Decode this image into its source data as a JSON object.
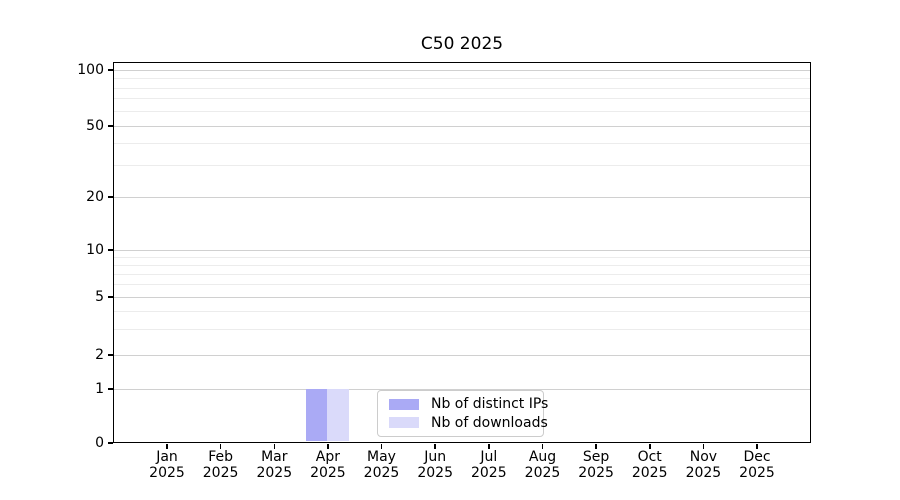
{
  "chart_data": {
    "type": "bar",
    "title": "C50 2025",
    "year": "2025",
    "categories": [
      "Jan",
      "Feb",
      "Mar",
      "Apr",
      "May",
      "Jun",
      "Jul",
      "Aug",
      "Sep",
      "Oct",
      "Nov",
      "Dec"
    ],
    "series": [
      {
        "name": "Nb of distinct IPs",
        "color": "#aaaaf5",
        "values": [
          0,
          0,
          0,
          1,
          0,
          0,
          0,
          0,
          0,
          0,
          0,
          0
        ]
      },
      {
        "name": "Nb of downloads",
        "color": "#dadafa",
        "values": [
          0,
          0,
          0,
          1,
          0,
          0,
          0,
          0,
          0,
          0,
          0,
          0
        ]
      }
    ],
    "y_axis": {
      "scale": "symlog",
      "ticks": [
        0,
        1,
        2,
        5,
        10,
        20,
        50,
        100
      ],
      "minor_ticks": [
        3,
        4,
        6,
        7,
        8,
        9,
        30,
        40,
        60,
        70,
        80,
        90
      ],
      "range": [
        0,
        100
      ]
    },
    "x_axis": {
      "tick_label_lines": 2
    },
    "legend": {
      "position": "lower center",
      "entries": [
        "Nb of distinct IPs",
        "Nb of downloads"
      ]
    },
    "grid": true
  },
  "colors": {
    "bar_distinct_ips": "#aaaaf5",
    "bar_downloads": "#dadafa",
    "major_gridline": "#d0d0d0",
    "minor_gridline": "#ececec",
    "axis": "#000000",
    "legend_border": "#cccccc",
    "background": "#ffffff",
    "text": "#000000"
  }
}
